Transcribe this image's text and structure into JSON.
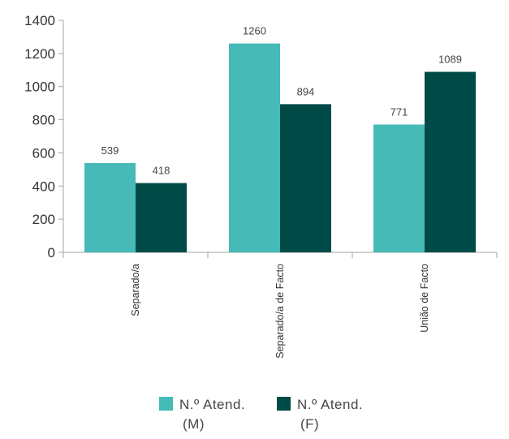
{
  "chart_data": {
    "type": "bar",
    "categories": [
      "Separado/a",
      "Separado/a de Facto",
      "União de Facto"
    ],
    "series": [
      {
        "name": "N.º Atend. (M)",
        "values": [
          539,
          1260,
          771
        ],
        "color": "#45bab7"
      },
      {
        "name": "N.º Atend. (F)",
        "values": [
          418,
          894,
          1089
        ],
        "color": "#004b47"
      }
    ],
    "ylim": [
      0,
      1400
    ],
    "yticks": [
      0,
      200,
      400,
      600,
      800,
      1000,
      1200,
      1400
    ],
    "grid": false,
    "legend_position": "bottom",
    "data_labels": true
  },
  "legend": [
    {
      "line1": "N.º Atend.",
      "line2": "(M)"
    },
    {
      "line1": "N.º Atend.",
      "line2": "(F)"
    }
  ]
}
